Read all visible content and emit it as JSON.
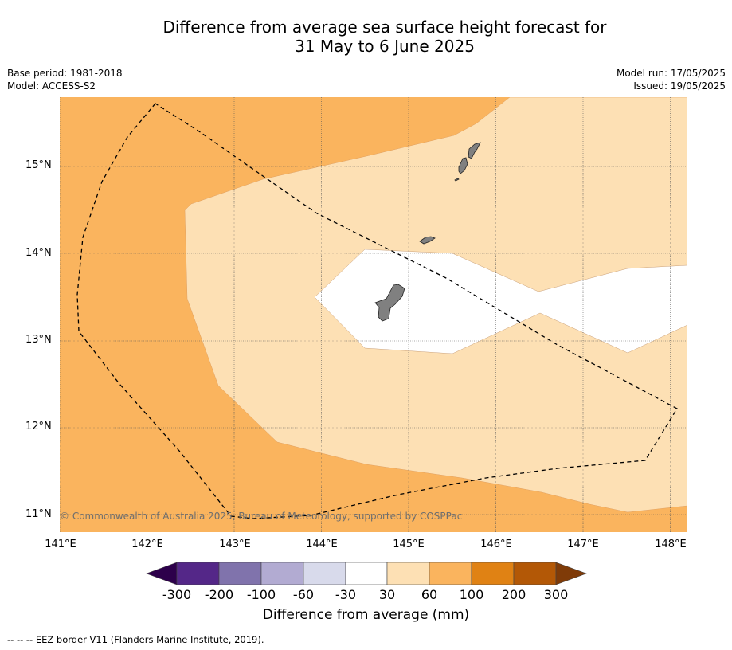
{
  "title_line1": "Difference from average sea surface height forecast for",
  "title_line2": "31 May to 6 June 2025",
  "meta": {
    "base_period": "Base period: 1981-2018",
    "model": "Model: ACCESS-S2",
    "model_run": "Model run: 17/05/2025",
    "issued": "Issued: 19/05/2025"
  },
  "map": {
    "lat_labels": [
      "15°N",
      "14°N",
      "13°N",
      "12°N",
      "11°N"
    ],
    "lon_labels": [
      "141°E",
      "142°E",
      "143°E",
      "144°E",
      "145°E",
      "146°E",
      "147°E",
      "148°E"
    ],
    "copyright": "© Commonwealth of Australia 2025, Bureau of Meteorology, supported by COSPPac",
    "colors": {
      "band_60_100": "#fab45e",
      "band_30_60": "#fde0b4",
      "band_neutral": "#ffffff",
      "land": "#808080",
      "grid": "#555555"
    }
  },
  "colorbar": {
    "ticks": [
      "-300",
      "-200",
      "-100",
      "-60",
      "-30",
      "30",
      "60",
      "100",
      "200",
      "300"
    ],
    "colors": [
      "#2d004b",
      "#542788",
      "#8073ac",
      "#b2abd2",
      "#d8daeb",
      "#ffffff",
      "#fde0b4",
      "#fab45e",
      "#e08214",
      "#b35806",
      "#7f3b08"
    ],
    "label": "Difference from average (mm)"
  },
  "footnote": "--  --  -- EEZ border V11 (Flanders Marine Institute, 2019)."
}
